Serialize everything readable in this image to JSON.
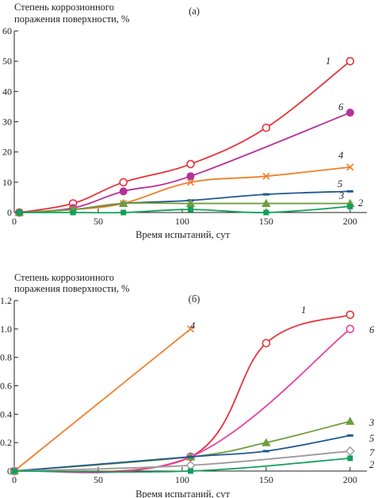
{
  "chart_data": [
    {
      "type": "line",
      "panel_label": "(a)",
      "ylabel": [
        "Степень коррозионного",
        "поражения поверхности, %"
      ],
      "xlabel": "Время испытаний, сут",
      "xlim": [
        0,
        210
      ],
      "ylim": [
        0,
        60
      ],
      "xticks": [
        0,
        50,
        100,
        150,
        200
      ],
      "yticks": [
        0,
        10,
        20,
        30,
        40,
        50,
        60
      ],
      "xtick_labels": [
        "0",
        "50",
        "100",
        "150",
        "200"
      ],
      "ytick_labels": [
        "0",
        "10",
        "20",
        "30",
        "40",
        "50",
        "60"
      ],
      "series": [
        {
          "name": "1",
          "color": "#e8313a",
          "marker": "open-circle",
          "x": [
            3,
            35,
            65,
            105,
            150,
            200
          ],
          "y": [
            0,
            3,
            10,
            16,
            28,
            50
          ]
        },
        {
          "name": "6",
          "color": "#b5319a",
          "marker": "filled-circle",
          "x": [
            3,
            35,
            65,
            105,
            200
          ],
          "y": [
            0,
            1.5,
            7,
            12,
            33
          ]
        },
        {
          "name": "4",
          "color": "#f07f2a",
          "marker": "cross",
          "x": [
            3,
            35,
            65,
            105,
            150,
            200
          ],
          "y": [
            0,
            1,
            3,
            10,
            12,
            15
          ]
        },
        {
          "name": "5",
          "color": "#23578f",
          "marker": "dash",
          "x": [
            3,
            35,
            65,
            105,
            150,
            200
          ],
          "y": [
            0,
            1,
            3,
            4,
            6,
            7
          ]
        },
        {
          "name": "3",
          "color": "#6e9e3c",
          "marker": "filled-triangle",
          "x": [
            3,
            35,
            65,
            105,
            150,
            200
          ],
          "y": [
            0,
            1,
            3,
            3,
            3,
            3
          ]
        },
        {
          "name": "2",
          "color": "#12a05a",
          "marker": "filled-square",
          "x": [
            3,
            35,
            65,
            105,
            150,
            200
          ],
          "y": [
            0,
            0,
            0,
            1,
            0,
            2
          ]
        }
      ]
    },
    {
      "type": "line",
      "panel_label": "(б)",
      "ylabel": [
        "Степень коррозионного",
        "поражения поверхности, %"
      ],
      "xlabel": "Время испытаний, сут",
      "xlim": [
        0,
        210
      ],
      "ylim": [
        0,
        1.2
      ],
      "xticks": [
        0,
        50,
        100,
        150,
        200
      ],
      "yticks": [
        0,
        0.2,
        0.4,
        0.6,
        0.8,
        1.0,
        1.2
      ],
      "xtick_labels": [
        "0",
        "50",
        "100",
        "150",
        "200"
      ],
      "ytick_labels": [
        "0",
        "0.2",
        "0.4",
        "0.6",
        "0.8",
        "1.0",
        "1.2"
      ],
      "series": [
        {
          "name": "4",
          "color": "#f07f2a",
          "marker": "cross",
          "x": [
            0,
            105
          ],
          "y": [
            0,
            1.0
          ]
        },
        {
          "name": "1",
          "color": "#e8313a",
          "marker": "open-circle",
          "x": [
            0,
            105,
            150,
            200
          ],
          "y": [
            0,
            0.1,
            0.9,
            1.1
          ]
        },
        {
          "name": "6",
          "color": "#e83fa2",
          "marker": "open-circle",
          "x": [
            0,
            105,
            200
          ],
          "y": [
            0,
            0.1,
            1.0
          ]
        },
        {
          "name": "3",
          "color": "#6e9e3c",
          "marker": "filled-triangle",
          "x": [
            0,
            105,
            150,
            200
          ],
          "y": [
            0,
            0.1,
            0.2,
            0.35
          ]
        },
        {
          "name": "5",
          "color": "#23578f",
          "marker": "dash",
          "x": [
            0,
            105,
            150,
            200
          ],
          "y": [
            0,
            0.1,
            0.14,
            0.25
          ]
        },
        {
          "name": "7",
          "color": "#9a9a9a",
          "marker": "open-diamond",
          "x": [
            0,
            105,
            200
          ],
          "y": [
            0,
            0.04,
            0.14
          ]
        },
        {
          "name": "2",
          "color": "#12a05a",
          "marker": "filled-square",
          "x": [
            0,
            105,
            200
          ],
          "y": [
            0,
            0,
            0.09
          ]
        }
      ]
    }
  ]
}
